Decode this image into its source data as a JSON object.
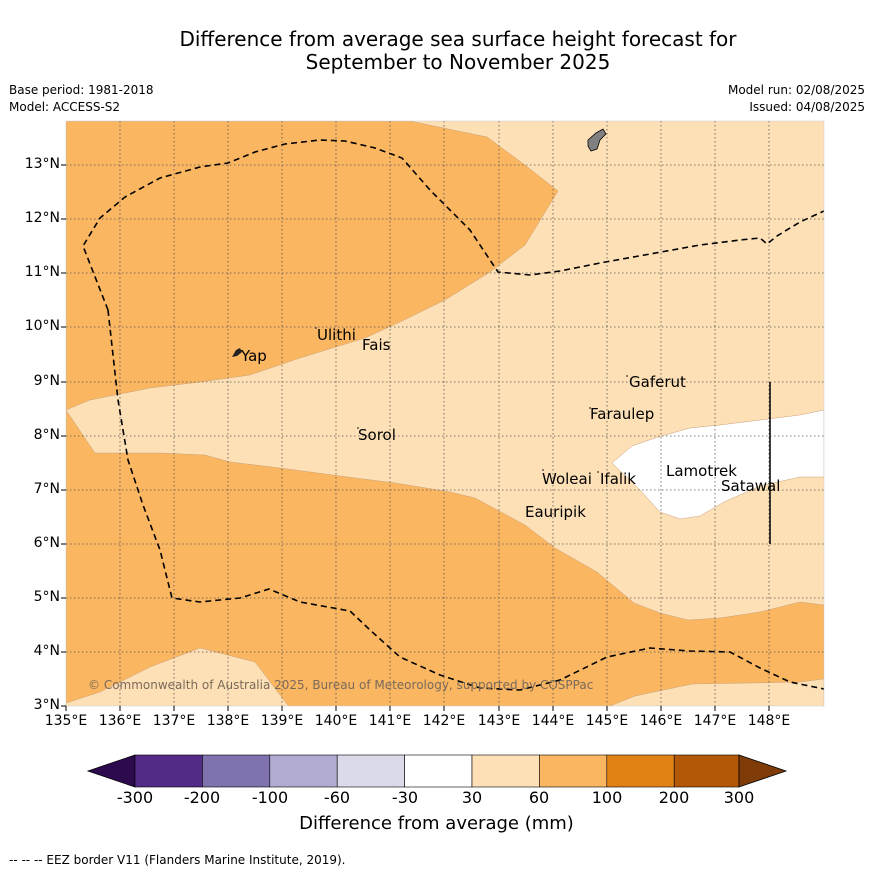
{
  "title_line1": "Difference from average sea surface height forecast for",
  "title_line2": "September to November 2025",
  "meta_left": [
    "Base period: 1981-2018",
    "Model: ACCESS-S2"
  ],
  "meta_right": [
    "Model run: 02/08/2025",
    "Issued: 04/08/2025"
  ],
  "x_ticks": [
    "135°E",
    "136°E",
    "137°E",
    "138°E",
    "139°E",
    "140°E",
    "141°E",
    "142°E",
    "143°E",
    "144°E",
    "145°E",
    "146°E",
    "147°E",
    "148°E"
  ],
  "y_ticks": [
    "13°N",
    "12°N",
    "11°N",
    "10°N",
    "9°N",
    "8°N",
    "7°N",
    "6°N",
    "5°N",
    "4°N",
    "3°N"
  ],
  "places": [
    {
      "name": "Yap",
      "lon": 138.25,
      "lat": 9.45
    },
    {
      "name": "Ulithi",
      "lon": 139.7,
      "lat": 9.8
    },
    {
      "name": "Fais",
      "lon": 140.4,
      "lat": 9.6
    },
    {
      "name": "Gaferut",
      "lon": 145.4,
      "lat": 8.85
    },
    {
      "name": "Faraulep",
      "lon": 144.7,
      "lat": 8.25
    },
    {
      "name": "Sorol",
      "lon": 140.4,
      "lat": 7.95
    },
    {
      "name": "Lamotrek",
      "lon": 146.05,
      "lat": 7.25
    },
    {
      "name": "Woleai",
      "lon": 143.9,
      "lat": 7.1
    },
    {
      "name": "Ifalik",
      "lon": 144.65,
      "lat": 7.1
    },
    {
      "name": "Satawal",
      "lon": 147.1,
      "lat": 6.95
    },
    {
      "name": "Eauripik",
      "lon": 143.5,
      "lat": 6.45
    }
  ],
  "copyright": "© Commonwealth of Australia 2025, Bureau of Meteorology, supported by COSPPac",
  "colorbar": {
    "title": "Difference from average (mm)",
    "labels": [
      "-300",
      "-200",
      "-100",
      "-60",
      "-30",
      "30",
      "60",
      "100",
      "200",
      "300"
    ],
    "colors": [
      "#2d0a4e",
      "#542a87",
      "#7f72ad",
      "#b1aad1",
      "#dadaeb",
      "#ffffff",
      "#fee0b6",
      "#fbb661",
      "#e08214",
      "#b35806",
      "#7f3b08"
    ]
  },
  "footer": "--  --  -- EEZ border V11 (Flanders Marine Institute, 2019).",
  "map_colors": {
    "band_30_60": "#fee0b6",
    "band_60_100": "#fbb661",
    "near_zero": "#ffffff",
    "land": "#808080"
  }
}
